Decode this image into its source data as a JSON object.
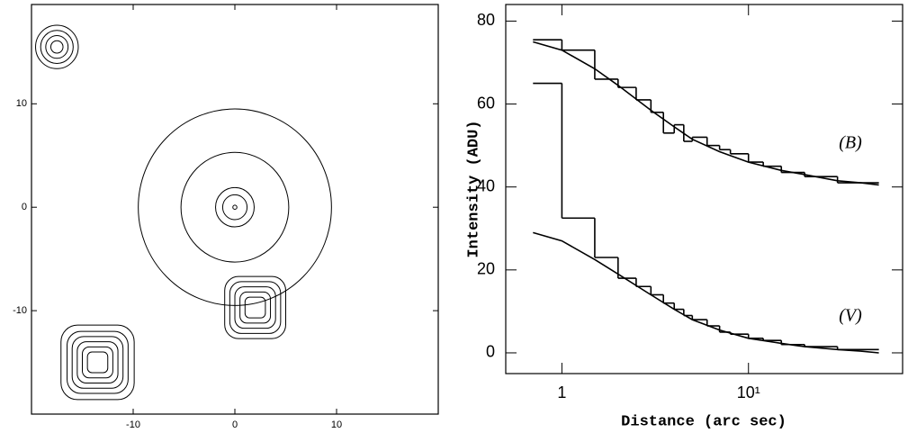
{
  "chart_data": [
    {
      "type": "contour",
      "xlim": [
        -20,
        20
      ],
      "ylim": [
        -20,
        19.6
      ],
      "xticks": [
        -10,
        0,
        10
      ],
      "yticks": [
        -10,
        0,
        10
      ],
      "contours": [
        {
          "x": -17.5,
          "y": 15.5,
          "shape": "circle",
          "radii": [
            0.6,
            1.1,
            1.6,
            2.1
          ]
        },
        {
          "x": 0,
          "y": 0,
          "shape": "circle",
          "radii": [
            0.2,
            1.2,
            1.9,
            5.3,
            9.5
          ]
        },
        {
          "x": 2,
          "y": -9.7,
          "shape": "square",
          "radii": [
            1.0,
            1.5,
            2.0,
            2.5,
            3.0
          ]
        },
        {
          "x": -13.5,
          "y": -15,
          "shape": "square",
          "radii": [
            1.0,
            1.5,
            2.0,
            2.5,
            3.0,
            3.6
          ]
        }
      ]
    },
    {
      "type": "line",
      "xlabel": "Distance (arc sec)",
      "ylabel": "Intensity (ADU)",
      "xscale": "log",
      "xlim": [
        0.5,
        67
      ],
      "ylim": [
        -5,
        84
      ],
      "xticks": [
        1,
        {
          "value": 10,
          "label": "10¹"
        }
      ],
      "yticks": [
        0,
        20,
        40,
        60,
        80
      ],
      "annotations": [
        "(B)",
        "(V)"
      ],
      "series": [
        {
          "drawstyle": "steps",
          "color": "#000000",
          "bins": [
            0.7,
            1,
            1.5,
            2,
            2.5,
            3,
            3.5,
            4,
            4.5,
            5,
            6,
            7,
            8,
            10,
            12,
            15,
            20,
            30,
            50
          ],
          "values": [
            75.5,
            73,
            66,
            64,
            61,
            58,
            53,
            55,
            51,
            52,
            50,
            49,
            48,
            46,
            45,
            43.5,
            42.5,
            41
          ]
        },
        {
          "drawstyle": "line",
          "color": "#000000",
          "x": [
            0.7,
            1,
            1.5,
            2,
            3,
            4,
            5,
            7,
            10,
            15,
            20,
            30,
            40,
            50
          ],
          "values": [
            75,
            73,
            68.5,
            64.5,
            58.5,
            54.5,
            51.5,
            48.5,
            46,
            44,
            43,
            41.5,
            41,
            40.5
          ]
        },
        {
          "drawstyle": "steps",
          "color": "#000000",
          "bins": [
            0.7,
            1,
            1.5,
            2,
            2.5,
            3,
            3.5,
            4,
            4.5,
            5,
            6,
            7,
            8,
            10,
            12,
            15,
            20,
            30,
            50
          ],
          "values": [
            65,
            32.5,
            23,
            18,
            16,
            14,
            12,
            10.5,
            9,
            8,
            6.5,
            5,
            4.5,
            3.5,
            3,
            2,
            1.5,
            0.8
          ]
        },
        {
          "drawstyle": "line",
          "color": "#000000",
          "x": [
            0.7,
            1,
            1.5,
            2,
            3,
            4,
            5,
            7,
            10,
            15,
            20,
            30,
            40,
            50
          ],
          "values": [
            29,
            27,
            22.5,
            19,
            14,
            10.5,
            8,
            5.5,
            3.5,
            2.3,
            1.5,
            0.8,
            0.4,
            0
          ]
        }
      ]
    }
  ]
}
